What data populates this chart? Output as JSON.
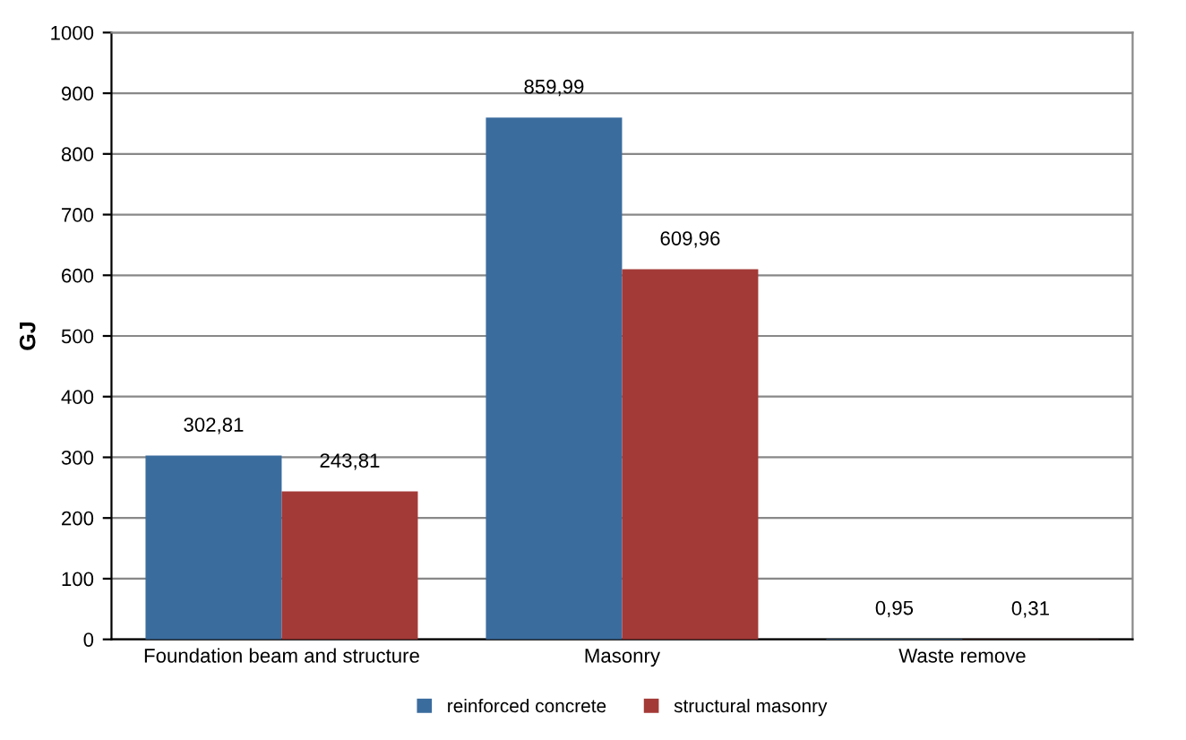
{
  "chart_data": {
    "type": "bar",
    "ylabel": "GJ",
    "categories": [
      "Foundation beam and structure",
      "Masonry",
      "Waste remove"
    ],
    "series": [
      {
        "name": "reinforced concrete",
        "color": "#3a6c9e",
        "values": [
          302.81,
          859.99,
          0.95
        ],
        "value_labels": [
          "302,81",
          "859,99",
          "0,95"
        ]
      },
      {
        "name": "structural masonry",
        "color": "#a33a37",
        "values": [
          243.81,
          609.96,
          0.31
        ],
        "value_labels": [
          "243,81",
          "609,96",
          "0,31"
        ]
      }
    ],
    "ylim": [
      0,
      1000
    ],
    "yticks": [
      0,
      100,
      200,
      300,
      400,
      500,
      600,
      700,
      800,
      900,
      1000
    ],
    "grid": "y",
    "legend": "bottom"
  }
}
